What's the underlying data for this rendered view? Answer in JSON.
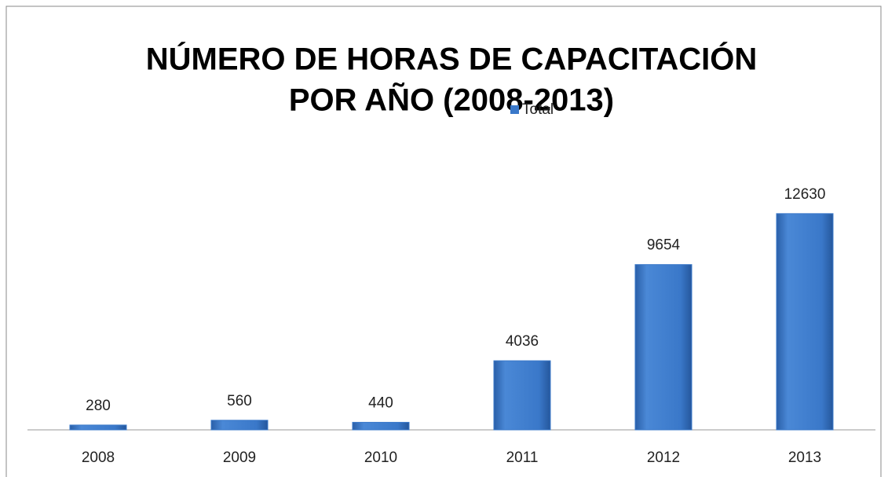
{
  "chart_data": {
    "type": "bar",
    "title": [
      "NÚMERO DE HORAS DE CAPACITACIÓN",
      "POR AÑO (2008-2013)"
    ],
    "categories": [
      "2008",
      "2009",
      "2010",
      "2011",
      "2012",
      "2013"
    ],
    "series": [
      {
        "name": "Total",
        "color": "#3a78c9",
        "values": [
          280,
          560,
          440,
          4036,
          9654,
          12630
        ]
      }
    ],
    "ylim": [
      0,
      14000
    ],
    "legend": "top"
  }
}
